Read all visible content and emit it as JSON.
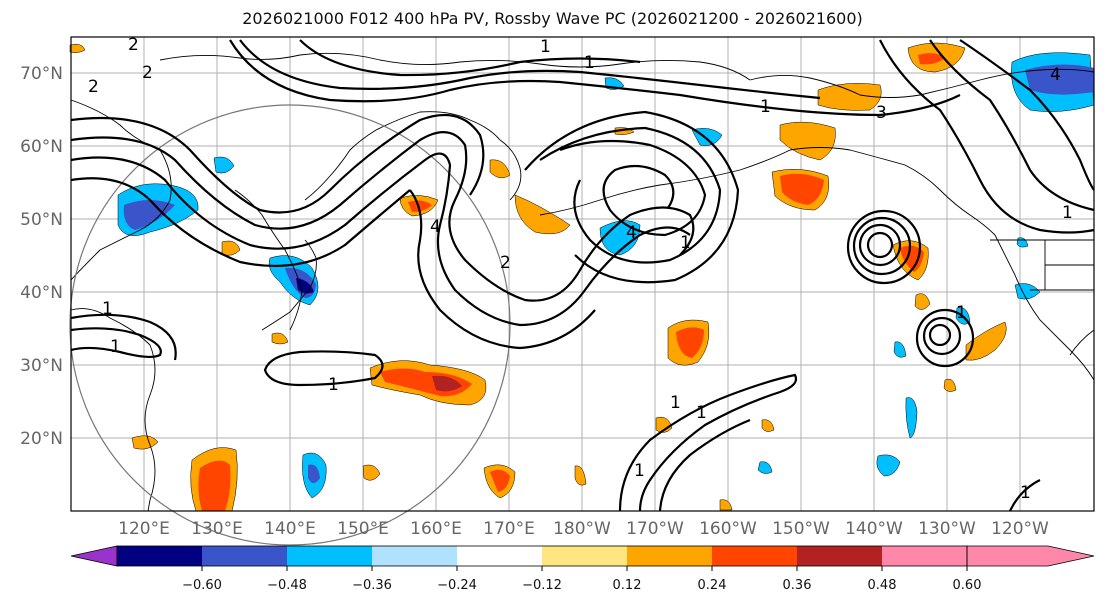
{
  "title": "2026021000 F012 400 hPa PV, Rossby Wave PC (2026021200 - 2026021600)",
  "lat_labels": [
    "70°N",
    "60°N",
    "50°N",
    "40°N",
    "30°N",
    "20°N"
  ],
  "lon_labels": [
    "120°E",
    "130°E",
    "140°E",
    "150°E",
    "160°E",
    "170°E",
    "180°W",
    "170°W",
    "160°W",
    "150°W",
    "140°W",
    "130°W",
    "120°W"
  ],
  "colorbar": {
    "tick_labels": [
      "−0.60",
      "−0.48",
      "−0.36",
      "−0.24",
      "−0.12",
      "0.12",
      "0.24",
      "0.36",
      "0.48",
      "0.60"
    ],
    "colors": [
      "#9933cc",
      "#000080",
      "#3a54c9",
      "#00bfff",
      "#b0e2ff",
      "#ffffff",
      "#ffe680",
      "#ffa500",
      "#ff4500",
      "#b22222",
      "#ff88aa"
    ]
  },
  "contour_labels": [
    "2",
    "2",
    "2",
    "1",
    "1",
    "1",
    "1",
    "1",
    "3",
    "4",
    "4",
    "2",
    "1",
    "1",
    "1",
    "1",
    "1",
    "1",
    "4",
    "1",
    "1"
  ],
  "colors": {
    "positive_strong": "#ff4500",
    "positive": "#ffa500",
    "negative": "#00bfff",
    "negative_strong": "#3a54c9"
  }
}
